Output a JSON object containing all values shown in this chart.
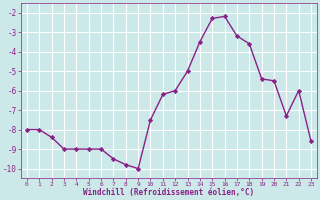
{
  "x": [
    0,
    1,
    2,
    3,
    4,
    5,
    6,
    7,
    8,
    9,
    10,
    11,
    12,
    13,
    14,
    15,
    16,
    17,
    18,
    19,
    20,
    21,
    22,
    23
  ],
  "y": [
    -8.0,
    -8.0,
    -8.4,
    -9.0,
    -9.0,
    -9.0,
    -9.0,
    -9.5,
    -9.8,
    -10.0,
    -7.5,
    -6.2,
    -6.0,
    -5.0,
    -3.5,
    -2.3,
    -2.2,
    -3.2,
    -3.6,
    -5.4,
    -5.5,
    -7.3,
    -6.0,
    -8.6
  ],
  "line_color": "#882288",
  "marker": "D",
  "marker_size": 2.2,
  "line_width": 1.0,
  "bg_color": "#cce8e8",
  "grid_color": "#ffffff",
  "xlabel": "Windchill (Refroidissement éolien,°C)",
  "xlabel_color": "#882288",
  "tick_color": "#882288",
  "ylim": [
    -10.5,
    -1.5
  ],
  "yticks": [
    -10,
    -9,
    -8,
    -7,
    -6,
    -5,
    -4,
    -3,
    -2
  ],
  "xlim": [
    -0.5,
    23.5
  ],
  "xticks": [
    0,
    1,
    2,
    3,
    4,
    5,
    6,
    7,
    8,
    9,
    10,
    11,
    12,
    13,
    14,
    15,
    16,
    17,
    18,
    19,
    20,
    21,
    22,
    23
  ],
  "figw": 3.2,
  "figh": 2.0,
  "dpi": 100
}
